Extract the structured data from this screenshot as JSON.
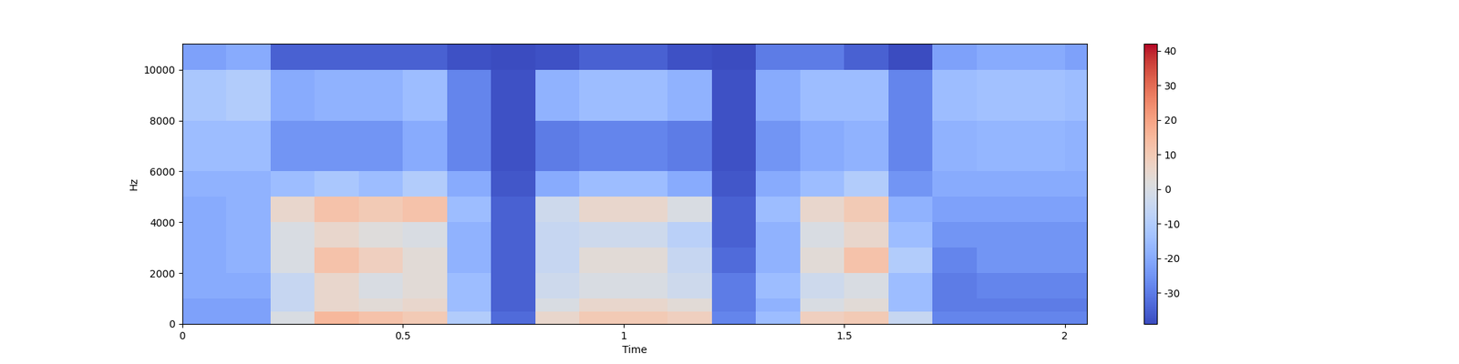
{
  "chart_data": {
    "type": "heatmap",
    "xlabel": "Time",
    "ylabel": "Hz",
    "xlim": [
      0,
      2.05
    ],
    "ylim": [
      0,
      11025
    ],
    "xticks": [
      0,
      0.5,
      1,
      1.5,
      2
    ],
    "yticks": [
      0,
      2000,
      4000,
      6000,
      8000,
      10000
    ],
    "x_edges": [
      0,
      0.1,
      0.2,
      0.3,
      0.4,
      0.5,
      0.6,
      0.7,
      0.8,
      0.9,
      1.0,
      1.1,
      1.2,
      1.3,
      1.4,
      1.5,
      1.6,
      1.7,
      1.8,
      1.9,
      2.0,
      2.05
    ],
    "y_edges": [
      0,
      500,
      1000,
      2000,
      3000,
      4000,
      5000,
      6000,
      8000,
      10000,
      11025
    ],
    "cells": [
      [
        -22,
        -22,
        0,
        15,
        12,
        10,
        -10,
        -33,
        5,
        10,
        10,
        8,
        -28,
        -15,
        8,
        10,
        -5,
        -28,
        -28,
        -28,
        -28
      ],
      [
        -22,
        -22,
        -5,
        5,
        3,
        5,
        -15,
        -35,
        0,
        5,
        5,
        3,
        -30,
        -18,
        0,
        3,
        -15,
        -30,
        -30,
        -30,
        -30
      ],
      [
        -20,
        -20,
        -5,
        5,
        0,
        3,
        -15,
        -35,
        -3,
        0,
        0,
        -3,
        -30,
        -15,
        -3,
        0,
        -15,
        -30,
        -28,
        -28,
        -28
      ],
      [
        -20,
        -18,
        0,
        12,
        8,
        3,
        -18,
        -35,
        -5,
        3,
        3,
        -5,
        -33,
        -18,
        3,
        12,
        -10,
        -28,
        -25,
        -25,
        -25
      ],
      [
        -20,
        -18,
        0,
        5,
        2,
        0,
        -18,
        -35,
        -5,
        -3,
        -3,
        -8,
        -35,
        -18,
        0,
        5,
        -15,
        -25,
        -25,
        -25,
        -25
      ],
      [
        -20,
        -18,
        5,
        12,
        10,
        12,
        -15,
        -35,
        -3,
        5,
        5,
        0,
        -35,
        -15,
        5,
        10,
        -18,
        -22,
        -22,
        -22,
        -22
      ],
      [
        -18,
        -18,
        -15,
        -12,
        -15,
        -10,
        -20,
        -37,
        -20,
        -15,
        -15,
        -20,
        -37,
        -20,
        -15,
        -10,
        -25,
        -20,
        -20,
        -20,
        -20
      ],
      [
        -15,
        -15,
        -25,
        -25,
        -25,
        -20,
        -28,
        -38,
        -30,
        -28,
        -28,
        -30,
        -38,
        -25,
        -20,
        -18,
        -28,
        -18,
        -17,
        -17,
        -18
      ],
      [
        -12,
        -10,
        -20,
        -18,
        -18,
        -15,
        -28,
        -38,
        -18,
        -15,
        -15,
        -18,
        -38,
        -20,
        -15,
        -15,
        -28,
        -15,
        -14,
        -14,
        -15
      ],
      [
        -22,
        -20,
        -35,
        -35,
        -35,
        -35,
        -38,
        -39,
        -38,
        -35,
        -35,
        -38,
        -39,
        -30,
        -30,
        -35,
        -39,
        -22,
        -20,
        -20,
        -22
      ]
    ],
    "colorbar": {
      "range": [
        -39,
        42
      ],
      "ticks": [
        -30,
        -20,
        -10,
        0,
        10,
        20,
        30,
        40
      ]
    }
  }
}
